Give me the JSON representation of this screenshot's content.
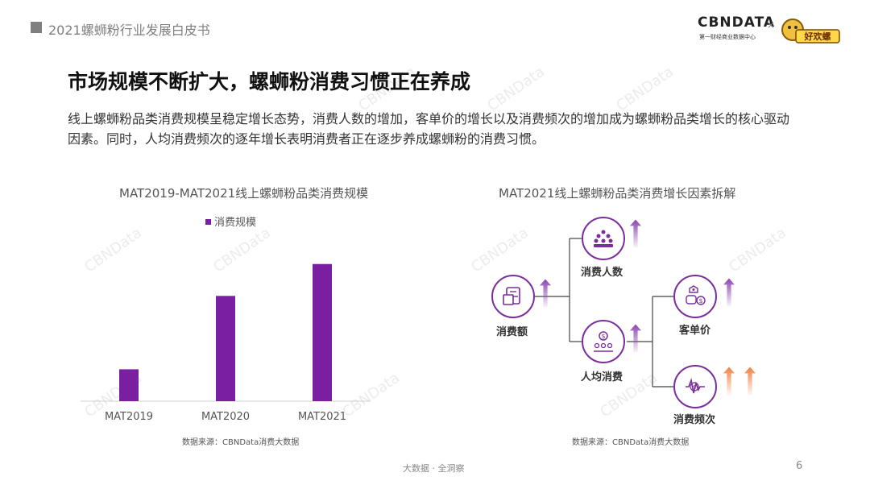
{
  "header": {
    "title": "2021螺蛳粉行业发展白皮书"
  },
  "logo": {
    "brand": "CBNDATA",
    "sub": "第一财经商业数据中心",
    "cross": "×",
    "partner": "好欢螺"
  },
  "main_title": "市场规模不断扩大，螺蛳粉消费习惯正在养成",
  "description": "线上螺蛳粉品类消费规模呈稳定增长态势，消费人数的增加，客单价的增长以及消费频次的增加成为螺蛳粉品类增长的核心驱动因素。同时，人均消费频次的逐年增长表明消费者正在逐步养成螺蛳粉的消费习惯。",
  "left_chart": {
    "title": "MAT2019-MAT2021线上螺蛳粉品类消费规模",
    "source": "数据来源：CBNData消费大数据"
  },
  "right_chart": {
    "title": "MAT2021线上螺蛳粉品类消费增长因素拆解",
    "source": "数据来源：CBNData消费大数据",
    "nodes": {
      "total": "消费额",
      "people": "消费人数",
      "per_capita": "人均消费",
      "unit_price": "客单价",
      "frequency": "消费频次"
    }
  },
  "chart_data": {
    "type": "bar",
    "categories": [
      "MAT2019",
      "MAT2020",
      "MAT2021"
    ],
    "series": [
      {
        "name": "消费规模",
        "values": [
          1.0,
          3.3,
          4.3
        ]
      }
    ],
    "ylim": [
      0,
      5
    ],
    "legend": "top",
    "grid": false,
    "colors": {
      "bar": "#7b1fa2"
    }
  },
  "colors": {
    "accent": "#7b2d9e",
    "arrow_up_purple": "#9b59b6",
    "arrow_up_orange": "#f0a060"
  },
  "footer": {
    "text": "大数据 · 全洞察",
    "page": "6"
  }
}
